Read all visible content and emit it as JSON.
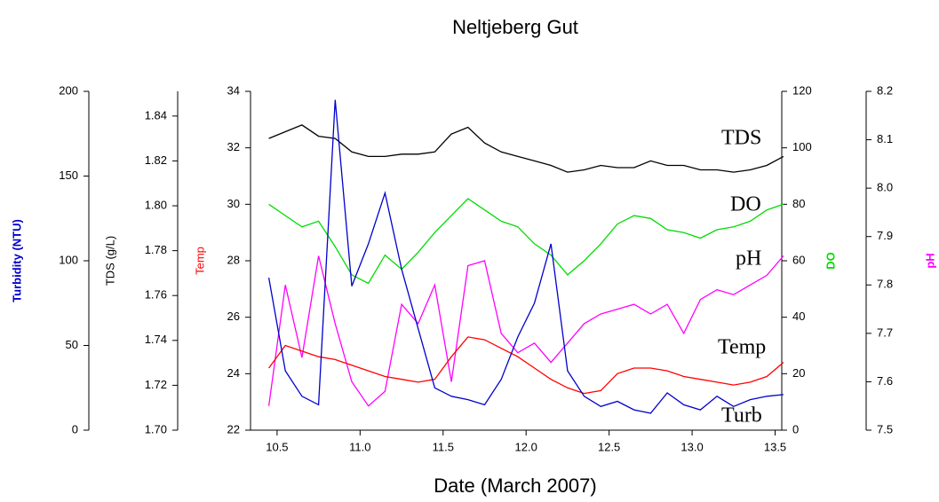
{
  "chart_data": {
    "type": "line",
    "title": "Neltjeberg Gut",
    "xlabel": "Date (March 2007)",
    "ylabel": "Temp",
    "y2label": "DO",
    "y3label": "Turbidity (NTU)",
    "y4label": "TDS (g/L)",
    "y5label": "pH",
    "x": [
      10.45,
      10.55,
      10.65,
      10.75,
      10.85,
      10.95,
      11.05,
      11.15,
      11.25,
      11.35,
      11.45,
      11.55,
      11.65,
      11.75,
      11.85,
      11.95,
      12.05,
      12.15,
      12.25,
      12.35,
      12.45,
      12.55,
      12.65,
      12.75,
      12.85,
      12.95,
      13.05,
      13.15,
      13.25,
      13.35,
      13.45,
      13.55
    ],
    "xlim": [
      10.34,
      13.54
    ],
    "xticks": [
      10.5,
      {
        "value": 11,
        "label": "11.0"
      },
      11.5,
      {
        "value": 12,
        "label": "12.0"
      },
      12.5,
      {
        "value": 13,
        "label": "13.0"
      },
      13.5
    ],
    "ylim": [
      22,
      34
    ],
    "yticks": [
      22,
      24,
      26,
      28,
      30,
      32,
      34
    ],
    "y2lim": [
      0,
      120
    ],
    "y2ticks": [
      0,
      20,
      40,
      60,
      80,
      100,
      120
    ],
    "y3lim": [
      0,
      200
    ],
    "y3ticks": [
      0,
      50,
      100,
      150,
      200
    ],
    "y4lim": [
      1.7,
      1.851
    ],
    "y4ticks": [
      {
        "value": 1.7,
        "label": "1.70"
      },
      1.72,
      1.74,
      1.76,
      1.78,
      {
        "value": 1.8,
        "label": "1.80"
      },
      1.82,
      1.84
    ],
    "y5lim": [
      7.5,
      8.2
    ],
    "y5ticks": [
      7.5,
      7.6,
      7.7,
      7.8,
      7.9,
      {
        "value": 8.0,
        "label": "8.0"
      },
      8.1,
      8.2
    ],
    "series": [
      {
        "name": "TDS",
        "color": "#000000",
        "axis": "y4",
        "values": [
          1.83,
          1.833,
          1.836,
          1.831,
          1.83,
          1.824,
          1.822,
          1.822,
          1.823,
          1.823,
          1.824,
          1.832,
          1.835,
          1.828,
          1.824,
          1.822,
          1.82,
          1.818,
          1.815,
          1.816,
          1.818,
          1.817,
          1.817,
          1.82,
          1.818,
          1.818,
          1.816,
          1.816,
          1.815,
          1.816,
          1.818,
          1.822
        ]
      },
      {
        "name": "DO",
        "color": "#00dd00",
        "axis": "y2",
        "values": [
          80,
          76,
          72,
          74,
          65,
          55,
          52,
          62,
          57,
          63,
          70,
          76,
          82,
          78,
          74,
          72,
          66,
          62,
          55,
          60,
          66,
          73,
          76,
          75,
          71,
          70,
          68,
          71,
          72,
          74,
          78,
          80
        ]
      },
      {
        "name": "pH",
        "color": "#ff00ff",
        "axis": "y5",
        "values": [
          7.55,
          7.8,
          7.65,
          7.86,
          7.72,
          7.6,
          7.55,
          7.58,
          7.76,
          7.72,
          7.8,
          7.6,
          7.84,
          7.85,
          7.7,
          7.66,
          7.68,
          7.64,
          7.68,
          7.72,
          7.74,
          7.75,
          7.76,
          7.74,
          7.76,
          7.7,
          7.77,
          7.79,
          7.78,
          7.8,
          7.82,
          7.86
        ]
      },
      {
        "name": "Temp",
        "color": "#ff0000",
        "axis": "y",
        "values": [
          24.2,
          25.0,
          24.8,
          24.6,
          24.5,
          24.3,
          24.1,
          23.9,
          23.8,
          23.7,
          23.8,
          24.6,
          25.3,
          25.2,
          24.9,
          24.6,
          24.2,
          23.8,
          23.5,
          23.3,
          23.4,
          24.0,
          24.2,
          24.2,
          24.1,
          23.9,
          23.8,
          23.7,
          23.6,
          23.7,
          23.9,
          24.4
        ]
      },
      {
        "name": "Turb",
        "color": "#0000cc",
        "axis": "y3",
        "values": [
          90,
          35,
          20,
          15,
          195,
          85,
          110,
          140,
          95,
          60,
          25,
          20,
          18,
          15,
          30,
          55,
          75,
          110,
          35,
          20,
          14,
          17,
          12,
          10,
          22,
          15,
          12,
          20,
          14,
          18,
          20,
          21
        ]
      }
    ]
  }
}
